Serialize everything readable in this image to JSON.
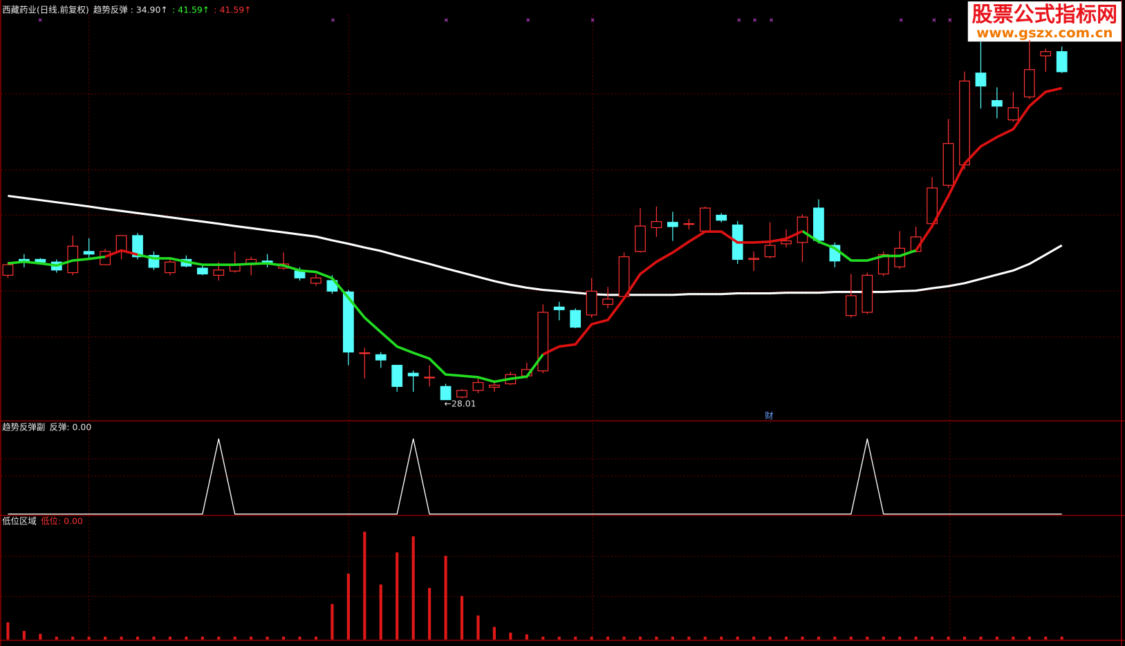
{
  "chart_data": [
    {
      "type": "candlestick",
      "title": "西藏药业(日线.前复权)",
      "legend_items": [
        {
          "text": "趋势反弹 : 34.90↑",
          "color": "#e8e8e8"
        },
        {
          "text": ": 41.59↑",
          "color": "#33ff33"
        },
        {
          "text": ": 41.59↑",
          "color": "#ff3333"
        }
      ],
      "open": [
        32.7,
        33.3,
        33.3,
        33.2,
        32.8,
        33.6,
        33.1,
        33.6,
        34.2,
        33.45,
        32.8,
        33.3,
        32.97,
        32.7,
        32.86,
        33.1,
        33.24,
        32.97,
        32.86,
        32.4,
        32.5,
        32.07,
        29.77,
        29.7,
        29.3,
        29.0,
        28.85,
        28.5,
        28.1,
        28.35,
        28.47,
        28.6,
        28.9,
        29.09,
        31.5,
        31.37,
        31.2,
        31.6,
        31.9,
        33.6,
        34.5,
        34.7,
        34.65,
        34.37,
        34.97,
        34.6,
        33.3,
        33.4,
        33.89,
        33.94,
        35.24,
        33.83,
        31.18,
        31.3,
        32.75,
        33.02,
        33.6,
        34.65,
        36.1,
        36.87,
        40.34,
        39.3,
        38.57,
        39.44,
        40.99,
        41.15
      ],
      "high": [
        33.2,
        33.5,
        33.35,
        33.3,
        34.2,
        34.1,
        33.7,
        34.2,
        34.3,
        33.6,
        33.3,
        33.45,
        33.07,
        33.2,
        33.6,
        33.4,
        33.5,
        33.56,
        33.0,
        32.75,
        32.7,
        32.15,
        29.96,
        29.8,
        29.3,
        29.1,
        29.3,
        28.6,
        28.4,
        28.8,
        28.74,
        29.06,
        29.4,
        31.6,
        31.7,
        31.45,
        32.6,
        32.26,
        33.56,
        35.24,
        35.3,
        35.1,
        34.83,
        35.3,
        35.05,
        34.75,
        33.6,
        34.7,
        34.43,
        35.0,
        35.57,
        33.94,
        32.75,
        32.8,
        33.6,
        34.37,
        34.54,
        36.4,
        38.6,
        40.4,
        41.53,
        39.8,
        39.63,
        41.59,
        41.26,
        41.34
      ],
      "low": [
        32.6,
        33.0,
        33.1,
        32.8,
        32.7,
        33.3,
        33.1,
        33.3,
        33.3,
        32.9,
        32.7,
        33.0,
        32.7,
        32.5,
        32.8,
        32.7,
        33.0,
        32.9,
        32.5,
        32.3,
        32.0,
        29.3,
        28.8,
        29.2,
        28.3,
        28.3,
        28.5,
        28.01,
        28.05,
        28.25,
        28.3,
        28.55,
        28.8,
        29.0,
        31.0,
        30.7,
        31.1,
        31.45,
        31.8,
        33.56,
        34.15,
        34.0,
        34.43,
        34.3,
        34.7,
        33.13,
        32.86,
        33.34,
        33.75,
        33.2,
        33.9,
        33.0,
        31.1,
        31.23,
        32.67,
        32.94,
        33.56,
        34.56,
        36.0,
        36.7,
        39.0,
        38.63,
        38.5,
        39.36,
        40.39,
        40.34
      ],
      "close": [
        33.1,
        33.2,
        33.2,
        32.9,
        33.8,
        33.5,
        33.6,
        34.2,
        33.4,
        33.0,
        33.2,
        33.05,
        32.75,
        32.9,
        33.1,
        33.3,
        33.13,
        33.13,
        32.6,
        32.6,
        32.1,
        29.8,
        29.77,
        29.5,
        28.5,
        28.9,
        28.85,
        28.0,
        28.35,
        28.65,
        28.55,
        28.95,
        29.14,
        31.3,
        31.4,
        30.74,
        32.1,
        31.8,
        33.4,
        34.56,
        34.73,
        34.54,
        34.65,
        35.24,
        34.78,
        33.3,
        33.34,
        33.83,
        34.0,
        34.9,
        34.02,
        33.24,
        31.93,
        32.7,
        33.48,
        33.72,
        34.15,
        36.0,
        37.68,
        40.04,
        39.85,
        39.09,
        39.03,
        40.47,
        41.15,
        40.39
      ],
      "up_color": "#ff3232",
      "down_color": "#54fcfc",
      "series": [
        {
          "color": "#ffffff",
          "width": 3,
          "values": [
            35.7,
            35.62,
            35.54,
            35.46,
            35.38,
            35.3,
            35.21,
            35.13,
            35.05,
            34.97,
            34.89,
            34.81,
            34.73,
            34.65,
            34.56,
            34.48,
            34.4,
            34.32,
            34.24,
            34.16,
            34.02,
            33.89,
            33.75,
            33.62,
            33.45,
            33.29,
            33.13,
            32.96,
            32.8,
            32.64,
            32.48,
            32.34,
            32.23,
            32.15,
            32.1,
            32.04,
            31.99,
            31.96,
            31.96,
            31.96,
            31.96,
            31.96,
            31.99,
            31.99,
            31.99,
            32.02,
            32.02,
            32.02,
            32.04,
            32.04,
            32.04,
            32.07,
            32.07,
            32.07,
            32.07,
            32.1,
            32.12,
            32.21,
            32.29,
            32.4,
            32.56,
            32.72,
            32.88,
            33.13,
            33.48,
            33.83
          ]
        },
        {
          "color": "#22dd22",
          "width": 3.5,
          "values": [
            33.15,
            33.21,
            33.15,
            33.07,
            33.26,
            33.32,
            33.4,
            null,
            33.48,
            33.34,
            33.34,
            33.21,
            33.1,
            33.1,
            33.1,
            33.13,
            33.15,
            33.07,
            32.88,
            32.83,
            32.59,
            31.85,
            31.1,
            30.55,
            30.01,
            29.77,
            29.55,
            28.95,
            28.9,
            28.85,
            28.68,
            28.79,
            28.87,
            29.71,
            null,
            null,
            null,
            null,
            null,
            null,
            null,
            null,
            null,
            null,
            null,
            null,
            null,
            null,
            null,
            34.37,
            33.97,
            33.72,
            33.26,
            33.26,
            33.43,
            33.43,
            33.64,
            null,
            null,
            null,
            null,
            null,
            null,
            null,
            null,
            null
          ]
        },
        {
          "color": "#dd1111",
          "width": 3.5,
          "values": [
            null,
            null,
            null,
            null,
            null,
            null,
            33.4,
            33.64,
            33.48,
            null,
            null,
            null,
            null,
            null,
            null,
            null,
            null,
            null,
            null,
            null,
            null,
            null,
            null,
            null,
            null,
            null,
            null,
            null,
            null,
            null,
            null,
            null,
            null,
            29.71,
            30.01,
            30.09,
            30.85,
            31.01,
            31.83,
            32.75,
            33.21,
            33.56,
            33.97,
            34.35,
            34.35,
            33.94,
            33.94,
            33.97,
            34.08,
            34.37,
            null,
            null,
            null,
            null,
            null,
            null,
            33.64,
            34.56,
            35.7,
            36.92,
            37.57,
            37.92,
            38.22,
            39.09,
            39.63,
            39.77
          ]
        }
      ],
      "ylim": [
        27.2,
        43.1
      ],
      "low_label": "←28.01",
      "event_label": "财"
    },
    {
      "type": "line",
      "title": "趋势反弹副",
      "legend_items": [
        {
          "text": "反弹: 0.00",
          "color": "#e8e8e8"
        }
      ],
      "series": [
        {
          "color": "#ffffff",
          "values": [
            0,
            0,
            0,
            0,
            0,
            0,
            0,
            0,
            0,
            0,
            0,
            0,
            0,
            1,
            0,
            0,
            0,
            0,
            0,
            0,
            0,
            0,
            0,
            0,
            0,
            1,
            0,
            0,
            0,
            0,
            0,
            0,
            0,
            0,
            0,
            0,
            0,
            0,
            0,
            0,
            0,
            0,
            0,
            0,
            0,
            0,
            0,
            0,
            0,
            0,
            0,
            0,
            0,
            1,
            0,
            0,
            0,
            0,
            0,
            0,
            0,
            0,
            0,
            0,
            0,
            0
          ]
        }
      ],
      "ylim": [
        0,
        1.23
      ]
    },
    {
      "type": "bar",
      "title": "低位区域",
      "legend_items": [
        {
          "text": "低位: 0.00",
          "color": "#ff3333"
        }
      ],
      "color": "#e01818",
      "values": [
        1.5,
        0.75,
        0.5,
        0.25,
        0.25,
        0.25,
        0.25,
        0.25,
        0.25,
        0.25,
        0.25,
        0.25,
        0.25,
        0.25,
        0.25,
        0.25,
        0.25,
        0.25,
        0.25,
        0.25,
        3.1,
        5.75,
        9.4,
        4.8,
        7.6,
        9.0,
        4.5,
        7.3,
        3.8,
        2.1,
        1.1,
        0.6,
        0.45,
        0.25,
        0.25,
        0.25,
        0.25,
        0.25,
        0.25,
        0.25,
        0.25,
        0.25,
        0.25,
        0.25,
        0.25,
        0.25,
        0.25,
        0.25,
        0.25,
        0.25,
        0.25,
        0.25,
        0.25,
        0.25,
        0.25,
        0.25,
        0.25,
        0.25,
        0.25,
        0.25,
        0.25,
        0.25,
        0.25,
        0.25,
        0.25,
        0.25
      ],
      "ylim": [
        0,
        10
      ]
    }
  ],
  "watermark": {
    "line1": "股票公式指标网",
    "line2": "www.gszx.com.cn"
  }
}
